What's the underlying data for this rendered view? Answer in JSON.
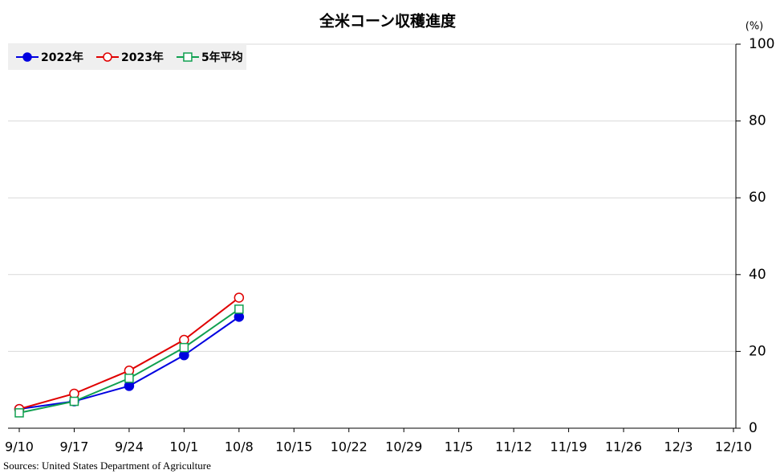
{
  "chart_data": {
    "type": "line",
    "title": "全米コーン収穫進度",
    "y_unit": "(%)",
    "source": "Sources: United States Department of Agriculture",
    "categories": [
      "9/10",
      "9/17",
      "9/24",
      "10/1",
      "10/8",
      "10/15",
      "10/22",
      "10/29",
      "11/5",
      "11/12",
      "11/19",
      "11/26",
      "12/3",
      "12/10"
    ],
    "series": [
      {
        "name": "2022年",
        "color": "#0000e0",
        "marker": "circle-filled",
        "values": [
          5,
          7,
          11,
          19,
          29,
          null,
          null,
          null,
          null,
          null,
          null,
          null,
          null,
          null
        ]
      },
      {
        "name": "2023年",
        "color": "#e00000",
        "marker": "circle-open",
        "values": [
          5,
          9,
          15,
          23,
          34,
          null,
          null,
          null,
          null,
          null,
          null,
          null,
          null,
          null
        ]
      },
      {
        "name": "5年平均",
        "color": "#10a050",
        "marker": "square-open",
        "values": [
          4,
          7,
          13,
          21,
          31,
          null,
          null,
          null,
          null,
          null,
          null,
          null,
          null,
          null
        ]
      }
    ],
    "ylim": [
      0,
      100
    ],
    "yticks": [
      0,
      20,
      40,
      60,
      80,
      100
    ],
    "grid": true,
    "y_axis_side": "right",
    "legend": "top-left"
  }
}
